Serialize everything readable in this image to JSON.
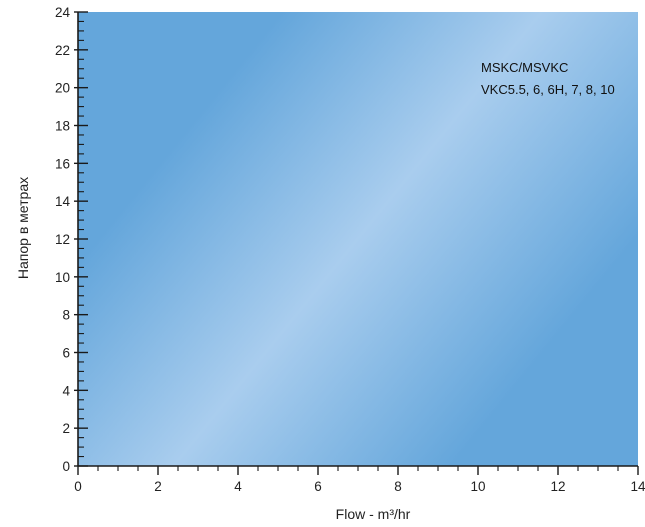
{
  "chart_data": {
    "type": "line",
    "xlabel": "Flow - m³/hr",
    "ylabel": "Напор в метрах",
    "xlim": [
      0,
      14
    ],
    "ylim": [
      0,
      24
    ],
    "x_ticks": [
      "0",
      "2",
      "4",
      "6",
      "8",
      "10",
      "12",
      "14"
    ],
    "y_ticks": [
      "0",
      "2",
      "4",
      "6",
      "8",
      "10",
      "12",
      "14",
      "16",
      "18",
      "20",
      "22",
      "24"
    ],
    "x_minor_step": 0.5,
    "y_minor_step": 0.5,
    "grid": false,
    "series": [],
    "annotations": [
      "MSKC/MSVKC",
      "VKC5.5, 6, 6H, 7, 8, 10"
    ],
    "colors": {
      "plot_base": "#64a6db",
      "plot_highlight": "#a9cdee",
      "axis": "#1a1a1a"
    }
  }
}
